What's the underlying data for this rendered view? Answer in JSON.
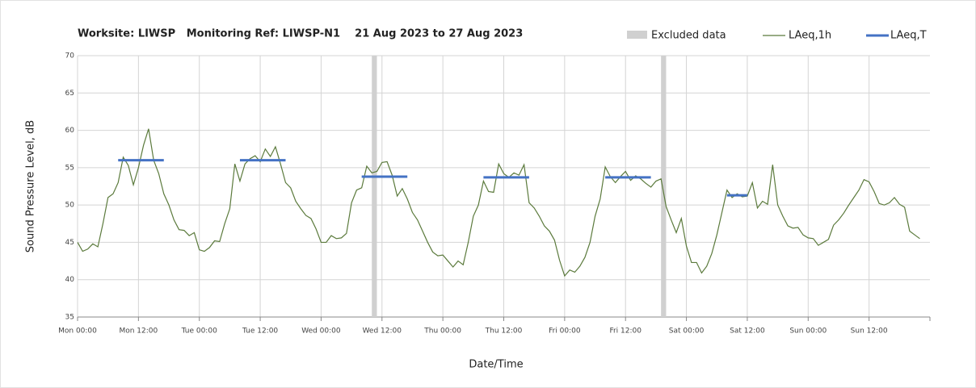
{
  "chart_data": {
    "type": "line",
    "title": "Worksite: LIWSP   Monitoring Ref: LIWSP-N1    21 Aug 2023 to 27 Aug 2023",
    "xlabel": "Date/Time",
    "ylabel": "Sound Pressure Level, dB",
    "xlim": [
      0,
      168
    ],
    "xticks": [
      {
        "value": 0,
        "label": "Mon 00:00"
      },
      {
        "value": 12,
        "label": "Mon 12:00"
      },
      {
        "value": 24,
        "label": "Tue 00:00"
      },
      {
        "value": 36,
        "label": "Tue 12:00"
      },
      {
        "value": 48,
        "label": "Wed 00:00"
      },
      {
        "value": 60,
        "label": "Wed 12:00"
      },
      {
        "value": 72,
        "label": "Thu 00:00"
      },
      {
        "value": 84,
        "label": "Thu 12:00"
      },
      {
        "value": 96,
        "label": "Fri 00:00"
      },
      {
        "value": 108,
        "label": "Fri 12:00"
      },
      {
        "value": 120,
        "label": "Sat 00:00"
      },
      {
        "value": 132,
        "label": "Sat 12:00"
      },
      {
        "value": 144,
        "label": "Sun 00:00"
      },
      {
        "value": 156,
        "label": "Sun 12:00"
      }
    ],
    "ylim": [
      35,
      70
    ],
    "yticks": [
      35,
      40,
      45,
      50,
      55,
      60,
      65,
      70
    ],
    "grid": true,
    "excluded": {
      "name": "Excluded data",
      "color": "#d0d0d0",
      "ranges": [
        [
          58,
          59
        ],
        [
          115,
          116
        ]
      ]
    },
    "series": [
      {
        "name": "LAeq,1h",
        "color": "#5b7a3c",
        "x": [
          0,
          1,
          2,
          3,
          4,
          5,
          6,
          7,
          8,
          9,
          10,
          11,
          12,
          13,
          14,
          15,
          16,
          17,
          18,
          19,
          20,
          21,
          22,
          23,
          24,
          25,
          26,
          27,
          28,
          29,
          30,
          31,
          32,
          33,
          34,
          35,
          36,
          37,
          38,
          39,
          40,
          41,
          42,
          43,
          44,
          45,
          46,
          47,
          48,
          49,
          50,
          51,
          52,
          53,
          54,
          55,
          56,
          57,
          58,
          59,
          60,
          61,
          62,
          63,
          64,
          65,
          66,
          67,
          68,
          69,
          70,
          71,
          72,
          73,
          74,
          75,
          76,
          77,
          78,
          79,
          80,
          81,
          82,
          83,
          84,
          85,
          86,
          87,
          88,
          89,
          90,
          91,
          92,
          93,
          94,
          95,
          96,
          97,
          98,
          99,
          100,
          101,
          102,
          103,
          104,
          105,
          106,
          107,
          108,
          109,
          110,
          111,
          112,
          113,
          114,
          115,
          116,
          117,
          118,
          119,
          120,
          121,
          122,
          123,
          124,
          125,
          126,
          127,
          128,
          129,
          130,
          131,
          132,
          133,
          134,
          135,
          136,
          137,
          138,
          139,
          140,
          141,
          142,
          143,
          144,
          145,
          146,
          147,
          148,
          149,
          150,
          151,
          152,
          153,
          154,
          155,
          156,
          157,
          158,
          159,
          160,
          161,
          162,
          163,
          164,
          165,
          166
        ],
        "values": [
          45,
          43.8,
          44.1,
          44.8,
          44.4,
          47.5,
          51,
          51.5,
          53,
          56.4,
          55.3,
          52.7,
          55,
          58,
          60.2,
          56,
          54.2,
          51.5,
          50,
          48,
          46.7,
          46.6,
          45.9,
          46.3,
          44,
          43.8,
          44.3,
          45.2,
          45.1,
          47.5,
          49.5,
          55.5,
          53.2,
          55.5,
          56.2,
          56.6,
          55.8,
          57.5,
          56.5,
          57.8,
          55.5,
          53,
          52.3,
          50.5,
          49.5,
          48.6,
          48.2,
          46.8,
          45,
          45,
          45.9,
          45.5,
          45.6,
          46.2,
          50.3,
          52,
          52.3,
          55.2,
          54.3,
          54.5,
          55.7,
          55.8,
          54,
          51.2,
          52.2,
          50.8,
          49,
          48,
          46.5,
          45,
          43.7,
          43.2,
          43.3,
          42.5,
          41.7,
          42.5,
          42,
          45,
          48.5,
          50,
          53.2,
          51.8,
          51.7,
          55.5,
          54.2,
          53.7,
          54.3,
          54,
          55.4,
          50.3,
          49.6,
          48.5,
          47.2,
          46.5,
          45.3,
          42.6,
          40.5,
          41.3,
          41,
          41.8,
          43,
          45,
          48.5,
          50.8,
          55.1,
          53.8,
          53,
          53.8,
          54.5,
          53.3,
          53.9,
          53.5,
          52.9,
          52.4,
          53.2,
          53.5,
          49.8,
          48,
          46.3,
          48.2,
          44.5,
          42.3,
          42.3,
          40.9,
          41.8,
          43.5,
          46,
          49,
          52,
          51,
          51.5,
          51.1,
          51.2,
          53,
          49.6,
          50.5,
          50.1,
          55.4,
          50,
          48.5,
          47.2,
          46.9,
          47,
          46,
          45.6,
          45.5,
          44.6,
          45,
          45.4,
          47.3,
          48,
          48.9,
          50,
          51,
          52,
          53.4,
          53.1,
          51.8,
          50.2,
          50,
          50.3,
          51,
          50.1,
          49.7,
          46.5,
          46,
          45.5
        ]
      }
    ],
    "periods": {
      "name": "LAeq,T",
      "color": "#4472c4",
      "segments": [
        {
          "start": 8,
          "end": 17,
          "value": 56
        },
        {
          "start": 32,
          "end": 41,
          "value": 56
        },
        {
          "start": 56,
          "end": 65,
          "value": 53.8
        },
        {
          "start": 80,
          "end": 89,
          "value": 53.7
        },
        {
          "start": 104,
          "end": 113,
          "value": 53.7
        },
        {
          "start": 128,
          "end": 132,
          "value": 51.3
        }
      ]
    }
  }
}
